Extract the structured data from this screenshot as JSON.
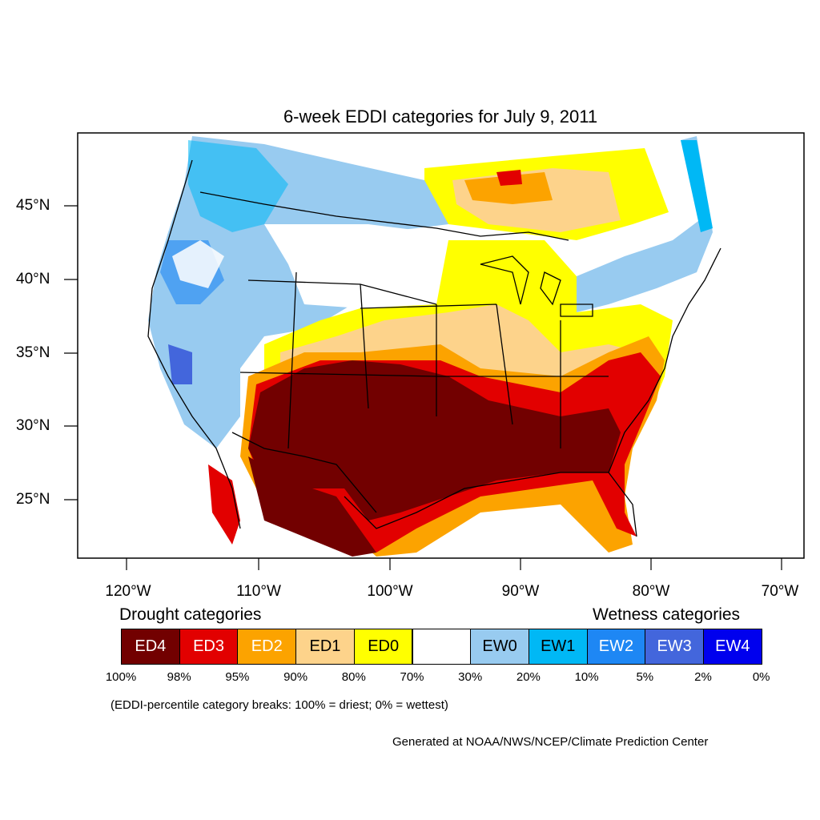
{
  "title": "6-week EDDI categories for July 9, 2011",
  "latitude_labels": [
    "45°N",
    "40°N",
    "35°N",
    "30°N",
    "25°N"
  ],
  "longitude_labels": [
    "120°W",
    "110°W",
    "100°W",
    "90°W",
    "80°W",
    "70°W"
  ],
  "legend": {
    "drought_heading": "Drought categories",
    "wetness_heading": "Wetness categories",
    "categories": [
      {
        "label": "ED4",
        "color": "#720000"
      },
      {
        "label": "ED3",
        "color": "#e20000"
      },
      {
        "label": "ED2",
        "color": "#fca300"
      },
      {
        "label": "ED1",
        "color": "#fdd38b"
      },
      {
        "label": "ED0",
        "color": "#ffff00"
      },
      {
        "label": "",
        "color": "#ffffff"
      },
      {
        "label": "EW0",
        "color": "#98cbf0"
      },
      {
        "label": "EW1",
        "color": "#00b8f5"
      },
      {
        "label": "EW2",
        "color": "#1e87f4"
      },
      {
        "label": "EW3",
        "color": "#4366dc"
      },
      {
        "label": "EW4",
        "color": "#0000ee"
      }
    ],
    "percent_breaks": [
      "100%",
      "98%",
      "95%",
      "90%",
      "80%",
      "70%",
      "30%",
      "20%",
      "10%",
      "5%",
      "2%",
      "0%"
    ],
    "note": "(EDDI-percentile category breaks: 100% = driest; 0% = wettest)"
  },
  "credit": "Generated at NOAA/NWS/NCEP/Climate Prediction Center"
}
